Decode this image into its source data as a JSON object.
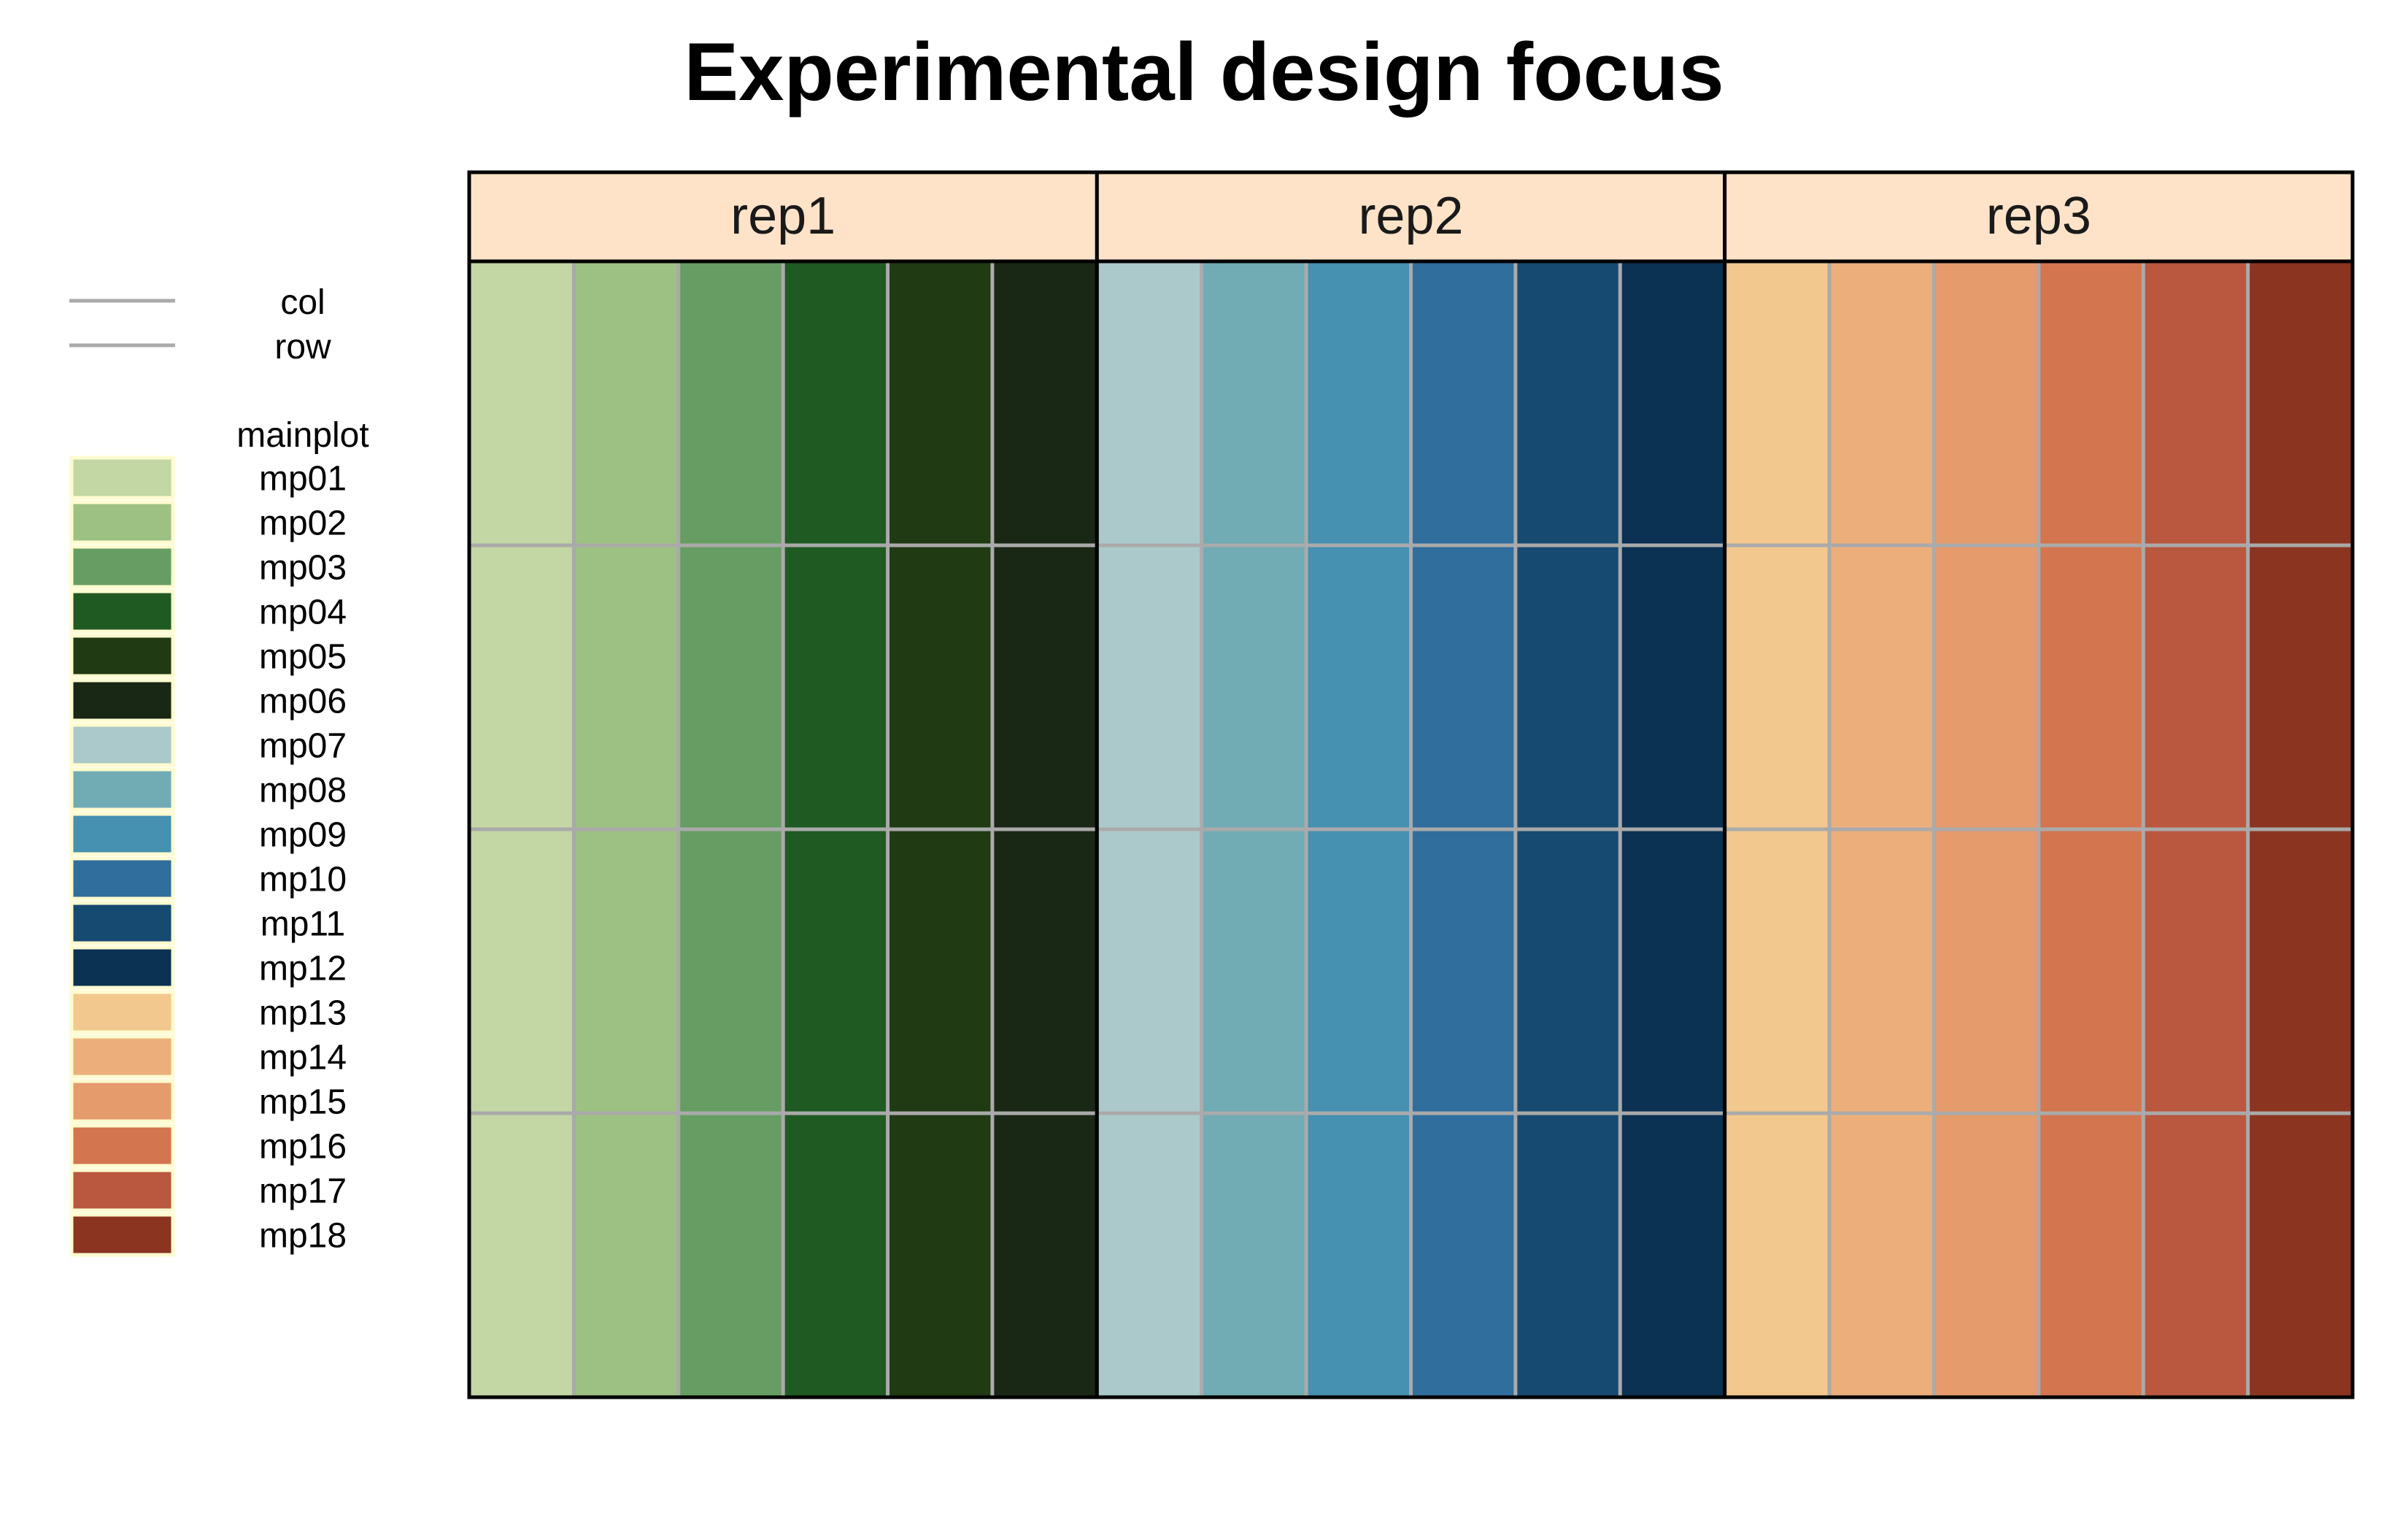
{
  "chart_data": {
    "type": "heatmap",
    "title": "Experimental design focus",
    "panels": [
      "rep1",
      "rep2",
      "rep3"
    ],
    "rows_per_panel": 4,
    "cols_per_panel": 6,
    "cells": [
      {
        "panel": "rep1",
        "col": 1,
        "mainplot": "mp01"
      },
      {
        "panel": "rep1",
        "col": 2,
        "mainplot": "mp02"
      },
      {
        "panel": "rep1",
        "col": 3,
        "mainplot": "mp03"
      },
      {
        "panel": "rep1",
        "col": 4,
        "mainplot": "mp04"
      },
      {
        "panel": "rep1",
        "col": 5,
        "mainplot": "mp05"
      },
      {
        "panel": "rep1",
        "col": 6,
        "mainplot": "mp06"
      },
      {
        "panel": "rep2",
        "col": 1,
        "mainplot": "mp07"
      },
      {
        "panel": "rep2",
        "col": 2,
        "mainplot": "mp08"
      },
      {
        "panel": "rep2",
        "col": 3,
        "mainplot": "mp09"
      },
      {
        "panel": "rep2",
        "col": 4,
        "mainplot": "mp10"
      },
      {
        "panel": "rep2",
        "col": 5,
        "mainplot": "mp11"
      },
      {
        "panel": "rep2",
        "col": 6,
        "mainplot": "mp12"
      },
      {
        "panel": "rep3",
        "col": 1,
        "mainplot": "mp13"
      },
      {
        "panel": "rep3",
        "col": 2,
        "mainplot": "mp14"
      },
      {
        "panel": "rep3",
        "col": 3,
        "mainplot": "mp15"
      },
      {
        "panel": "rep3",
        "col": 4,
        "mainplot": "mp16"
      },
      {
        "panel": "rep3",
        "col": 5,
        "mainplot": "mp17"
      },
      {
        "panel": "rep3",
        "col": 6,
        "mainplot": "mp18"
      }
    ],
    "legend": {
      "placement": "left",
      "line_items": [
        {
          "label": "col",
          "color": "#aaaaaa"
        },
        {
          "label": "row",
          "color": "#aaaaaa"
        }
      ],
      "fill_title": "mainplot",
      "fill_items": [
        {
          "label": "mp01",
          "color": "#c3d7a4"
        },
        {
          "label": "mp02",
          "color": "#9dc183"
        },
        {
          "label": "mp03",
          "color": "#669d62"
        },
        {
          "label": "mp04",
          "color": "#1f5a23"
        },
        {
          "label": "mp05",
          "color": "#203a14"
        },
        {
          "label": "mp06",
          "color": "#192715"
        },
        {
          "label": "mp07",
          "color": "#abc9ca"
        },
        {
          "label": "mp08",
          "color": "#71abb4"
        },
        {
          "label": "mp09",
          "color": "#4690b1"
        },
        {
          "label": "mp10",
          "color": "#2f6e9d"
        },
        {
          "label": "mp11",
          "color": "#174a71"
        },
        {
          "label": "mp12",
          "color": "#0b3153"
        },
        {
          "label": "mp13",
          "color": "#f2c88f"
        },
        {
          "label": "mp14",
          "color": "#ecaf7c"
        },
        {
          "label": "mp15",
          "color": "#e69b6c"
        },
        {
          "label": "mp16",
          "color": "#d3754f"
        },
        {
          "label": "mp17",
          "color": "#b9573f"
        },
        {
          "label": "mp18",
          "color": "#8b3521"
        }
      ]
    },
    "colors": {
      "strip_fill": "#fee3c8",
      "grid_line": "#aaaaaa",
      "legend_key_border": "#fffbd0",
      "border": "#000000"
    }
  }
}
